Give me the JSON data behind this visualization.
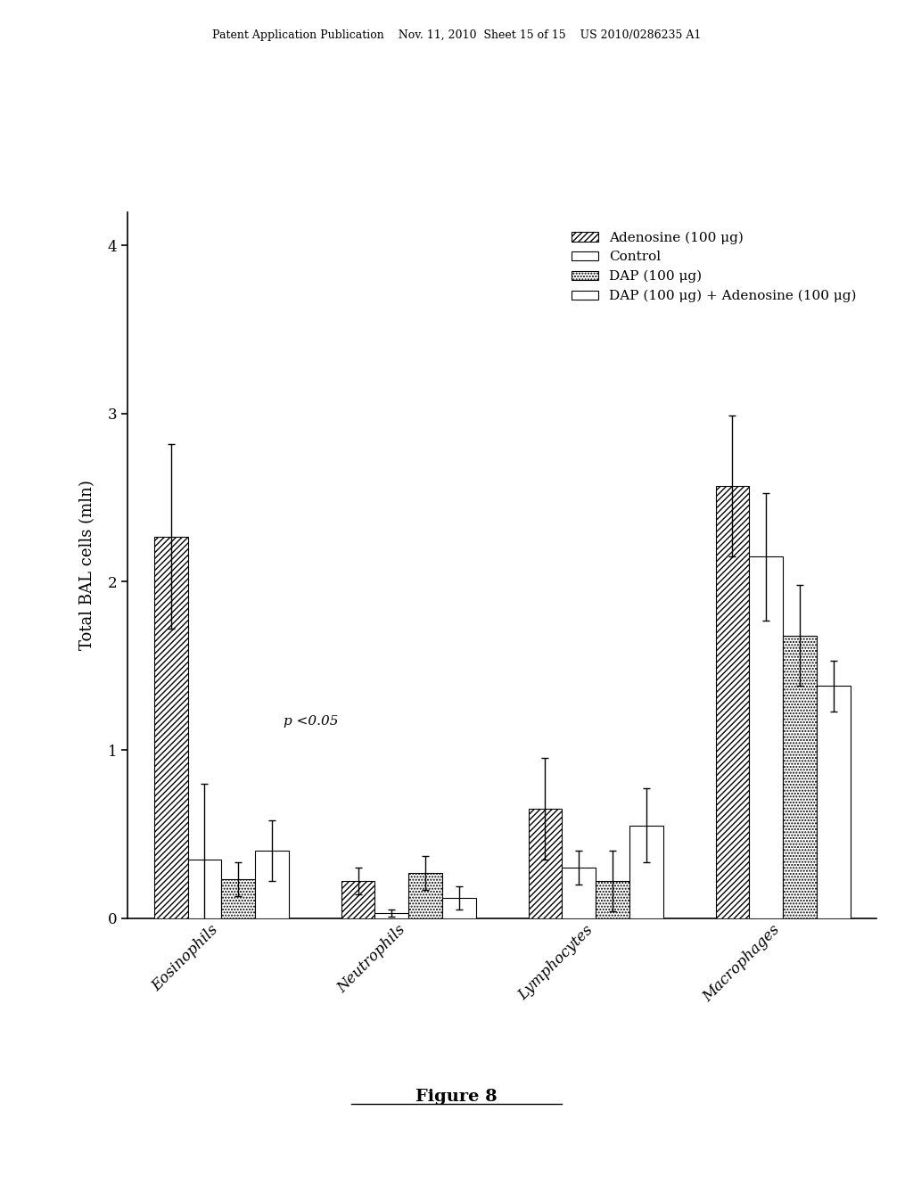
{
  "categories": [
    "Eosinophils",
    "Neutrophils",
    "Lymphocytes",
    "Macrophages"
  ],
  "series_labels": [
    "Adenosine (100 μg)",
    "Control",
    "DAP (100 μg)",
    "DAP (100 μg) + Adenosine (100 μg)"
  ],
  "bar_values": [
    [
      2.27,
      0.35,
      0.23,
      0.4
    ],
    [
      0.22,
      0.03,
      0.27,
      0.12
    ],
    [
      0.65,
      0.3,
      0.22,
      0.55
    ],
    [
      2.57,
      2.15,
      1.68,
      1.38
    ]
  ],
  "bar_errors": [
    [
      0.55,
      0.45,
      0.1,
      0.18
    ],
    [
      0.08,
      0.02,
      0.1,
      0.07
    ],
    [
      0.3,
      0.1,
      0.18,
      0.22
    ],
    [
      0.42,
      0.38,
      0.3,
      0.15
    ]
  ],
  "hatches": [
    "/////",
    "",
    ".....",
    "====="
  ],
  "bar_colors": [
    "white",
    "white",
    "white",
    "white"
  ],
  "bar_edgecolors": [
    "black",
    "black",
    "black",
    "black"
  ],
  "ylabel": "Total BAL cells (mln)",
  "ylim": [
    0,
    4.2
  ],
  "yticks": [
    0,
    1,
    2,
    3,
    4
  ],
  "annotation_text": "p <0.05",
  "figure_caption": "Figure 8",
  "header_text": "Patent Application Publication    Nov. 11, 2010  Sheet 15 of 15    US 2010/0286235 A1",
  "bar_width": 0.18,
  "legend_fontsize": 11,
  "tick_fontsize": 12,
  "label_fontsize": 13
}
